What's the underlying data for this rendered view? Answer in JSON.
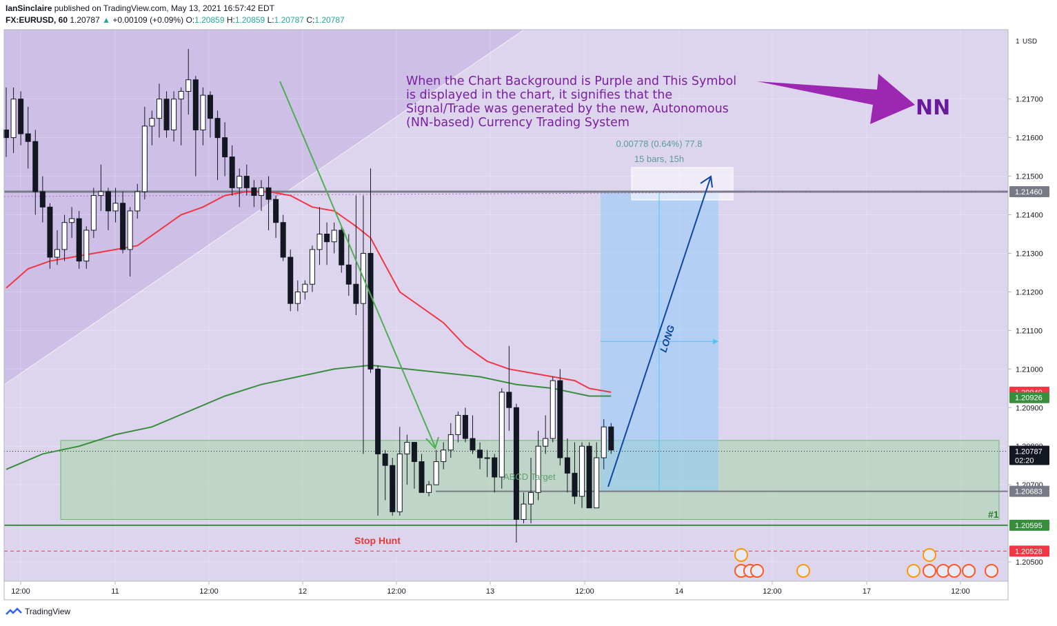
{
  "header": {
    "author": "IanSinclaire",
    "published_text": "published on TradingView.com, May 13, 2021 16:57:42 EDT",
    "symbol": "FX:EURUSD, 60",
    "last": "1.20787",
    "change_arrow": "▲",
    "change": "+0.00109 (+0.09%)",
    "o_label": "O:",
    "o": "1.20859",
    "h_label": "H:",
    "h": "1.20859",
    "l_label": "L:",
    "l": "1.20787",
    "c_label": "C:",
    "c": "1.20787"
  },
  "annotation": {
    "text_lines": [
      "When the Chart Background is Purple and This Symbol",
      "is displayed in the chart, it signifies that the",
      "Signal/Trade was generated by the new,  Autonomous",
      "(NN-based) Currency Trading System"
    ],
    "symbol": "NN"
  },
  "measure": {
    "line1": "0.00778 (0.64%) 77.8",
    "line2": "15 bars, 15h"
  },
  "labels": {
    "long": "LONG",
    "abcd": "ABCD Target",
    "stop_hunt": "Stop Hunt",
    "zone_tag": "#1",
    "currency": "USD",
    "currency_prefix": "1"
  },
  "chart_data": {
    "type": "candlestick",
    "symbol": "FX:EURUSD",
    "interval": "60",
    "ylim": [
      1.2045,
      1.2188
    ],
    "y_ticks": [
      "1.21700",
      "1.21600",
      "1.21500",
      "1.21400",
      "1.21300",
      "1.21200",
      "1.21100",
      "1.21000",
      "1.20900",
      "1.20800",
      "1.20700",
      "1.20500"
    ],
    "x_ticks": [
      "12:00",
      "11",
      "12:00",
      "12",
      "12:00",
      "13",
      "12:00",
      "14",
      "12:00",
      "17",
      "12:00"
    ],
    "price_tags": [
      {
        "value": "1.21460",
        "color": "#787b86"
      },
      {
        "value": "1.20940",
        "color": "#f23645"
      },
      {
        "value": "1.20926",
        "color": "#388e3c"
      },
      {
        "value": "1.20787",
        "color": "#131722",
        "sub": "02:20"
      },
      {
        "value": "1.20683",
        "color": "#787b86"
      },
      {
        "value": "1.20595",
        "color": "#388e3c"
      },
      {
        "value": "1.20528",
        "color": "#f23645"
      }
    ],
    "levels": {
      "resistance": 1.2146,
      "abcd_target": 1.20683,
      "support": 1.20595,
      "stop_hunt": 1.20528
    },
    "zone": {
      "high": 1.20815,
      "low": 1.2061
    },
    "trade": {
      "entry": 1.20683,
      "target": 1.2146,
      "change": "0.00778 (0.64%) 77.8",
      "bars": "15 bars, 15h"
    },
    "candles": [
      [
        1.2162,
        1.2173,
        1.2155,
        1.216
      ],
      [
        1.216,
        1.2173,
        1.2156,
        1.217
      ],
      [
        1.217,
        1.2172,
        1.2158,
        1.2161
      ],
      [
        1.2161,
        1.2168,
        1.2152,
        1.2159
      ],
      [
        1.2159,
        1.2162,
        1.214,
        1.2146
      ],
      [
        1.2146,
        1.215,
        1.2138,
        1.2142
      ],
      [
        1.2142,
        1.2143,
        1.2126,
        1.2129
      ],
      [
        1.2129,
        1.2136,
        1.2127,
        1.2131
      ],
      [
        1.2131,
        1.214,
        1.2128,
        1.2138
      ],
      [
        1.2138,
        1.2142,
        1.2134,
        1.2139
      ],
      [
        1.2139,
        1.2141,
        1.2126,
        1.2128
      ],
      [
        1.2128,
        1.2137,
        1.2126,
        1.2136
      ],
      [
        1.2136,
        1.2147,
        1.2134,
        1.2145
      ],
      [
        1.2145,
        1.2153,
        1.2141,
        1.2146
      ],
      [
        1.2146,
        1.2147,
        1.2136,
        1.2141
      ],
      [
        1.2141,
        1.2147,
        1.2138,
        1.2143
      ],
      [
        1.2143,
        1.2146,
        1.213,
        1.2131
      ],
      [
        1.2131,
        1.2142,
        1.2124,
        1.2141
      ],
      [
        1.2141,
        1.2148,
        1.2139,
        1.2146
      ],
      [
        1.2146,
        1.2168,
        1.2144,
        1.2163
      ],
      [
        1.2163,
        1.2167,
        1.2158,
        1.2165
      ],
      [
        1.2165,
        1.2174,
        1.216,
        1.217
      ],
      [
        1.217,
        1.2172,
        1.216,
        1.2162
      ],
      [
        1.2162,
        1.2172,
        1.2159,
        1.217
      ],
      [
        1.217,
        1.2173,
        1.2158,
        1.2172
      ],
      [
        1.2172,
        1.2183,
        1.2166,
        1.2175
      ],
      [
        1.2175,
        1.2176,
        1.215,
        1.2162
      ],
      [
        1.2162,
        1.2173,
        1.2158,
        1.2171
      ],
      [
        1.2171,
        1.2172,
        1.216,
        1.2165
      ],
      [
        1.2165,
        1.2167,
        1.2149,
        1.216
      ],
      [
        1.216,
        1.2164,
        1.215,
        1.2155
      ],
      [
        1.2155,
        1.2158,
        1.2145,
        1.2147
      ],
      [
        1.2147,
        1.2152,
        1.2142,
        1.215
      ],
      [
        1.215,
        1.2153,
        1.2145,
        1.2147
      ],
      [
        1.2147,
        1.2149,
        1.2142,
        1.2145
      ],
      [
        1.2145,
        1.2149,
        1.2141,
        1.2147
      ],
      [
        1.2147,
        1.215,
        1.2136,
        1.2144
      ],
      [
        1.2144,
        1.2145,
        1.2134,
        1.2138
      ],
      [
        1.2138,
        1.214,
        1.2128,
        1.2129
      ],
      [
        1.2129,
        1.2131,
        1.2115,
        1.2117
      ],
      [
        1.2117,
        1.2123,
        1.2115,
        1.212
      ],
      [
        1.212,
        1.2123,
        1.2118,
        1.2122
      ],
      [
        1.2122,
        1.2132,
        1.212,
        1.2131
      ],
      [
        1.2131,
        1.2142,
        1.2127,
        1.2135
      ],
      [
        1.2135,
        1.2138,
        1.2127,
        1.2133
      ],
      [
        1.2133,
        1.2138,
        1.213,
        1.2136
      ],
      [
        1.2136,
        1.2137,
        1.2125,
        1.2127
      ],
      [
        1.2127,
        1.2135,
        1.2119,
        1.2122
      ],
      [
        1.2122,
        1.2145,
        1.2114,
        1.2117
      ],
      [
        1.2117,
        1.2145,
        1.2078,
        1.213
      ],
      [
        1.213,
        1.2152,
        1.2099,
        1.21
      ],
      [
        1.21,
        1.2101,
        1.2062,
        1.2078
      ],
      [
        1.2078,
        1.2079,
        1.2066,
        1.2075
      ],
      [
        1.2075,
        1.2077,
        1.2062,
        1.2063
      ],
      [
        1.2063,
        1.2085,
        1.2062,
        1.2078
      ],
      [
        1.2078,
        1.2083,
        1.207,
        1.2081
      ],
      [
        1.2081,
        1.2081,
        1.2069,
        1.2076
      ],
      [
        1.2076,
        1.2078,
        1.2068,
        1.2068
      ],
      [
        1.2068,
        1.2071,
        1.2067,
        1.207
      ],
      [
        1.207,
        1.2079,
        1.207,
        1.2076
      ],
      [
        1.2076,
        1.2081,
        1.2074,
        1.2079
      ],
      [
        1.2079,
        1.2086,
        1.2077,
        1.2083
      ],
      [
        1.2083,
        1.2089,
        1.2081,
        1.2088
      ],
      [
        1.2088,
        1.209,
        1.2081,
        1.2082
      ],
      [
        1.2082,
        1.2088,
        1.2078,
        1.2079
      ],
      [
        1.2079,
        1.2081,
        1.2074,
        1.2077
      ],
      [
        1.2077,
        1.2079,
        1.2072,
        1.2077
      ],
      [
        1.2077,
        1.2078,
        1.2068,
        1.2072
      ],
      [
        1.2072,
        1.2095,
        1.2069,
        1.2094
      ],
      [
        1.2094,
        1.2106,
        1.2084,
        1.209
      ],
      [
        1.209,
        1.2091,
        1.2055,
        1.2061
      ],
      [
        1.2061,
        1.2068,
        1.206,
        1.2065
      ],
      [
        1.2065,
        1.2077,
        1.206,
        1.2068
      ],
      [
        1.2068,
        1.2084,
        1.2066,
        1.208
      ],
      [
        1.208,
        1.2088,
        1.2078,
        1.2082
      ],
      [
        1.2082,
        1.2098,
        1.2081,
        1.2097
      ],
      [
        1.2097,
        1.21,
        1.2075,
        1.2077
      ],
      [
        1.2077,
        1.2082,
        1.2068,
        1.2073
      ],
      [
        1.2073,
        1.2081,
        1.2065,
        1.2067
      ],
      [
        1.2067,
        1.2081,
        1.2064,
        1.208
      ],
      [
        1.208,
        1.2081,
        1.2064,
        1.2064
      ],
      [
        1.2064,
        1.2081,
        1.2064,
        1.2077
      ],
      [
        1.2077,
        1.2087,
        1.2074,
        1.2085
      ],
      [
        1.2085,
        1.2086,
        1.2078,
        1.2079
      ]
    ],
    "sma_red": [
      [
        0,
        1.2121
      ],
      [
        3,
        1.2126
      ],
      [
        6,
        1.2128
      ],
      [
        9,
        1.2129
      ],
      [
        12,
        1.213
      ],
      [
        15,
        1.2131
      ],
      [
        18,
        1.2132
      ],
      [
        21,
        1.2136
      ],
      [
        24,
        1.214
      ],
      [
        27,
        1.2142
      ],
      [
        30,
        1.2145
      ],
      [
        33,
        1.2146
      ],
      [
        36,
        1.2146
      ],
      [
        39,
        1.2145
      ],
      [
        42,
        1.2142
      ],
      [
        45,
        1.2141
      ],
      [
        48,
        1.2137
      ],
      [
        50,
        1.2134
      ],
      [
        52,
        1.2127
      ],
      [
        54,
        1.212
      ],
      [
        57,
        1.2116
      ],
      [
        60,
        1.2112
      ],
      [
        63,
        1.2106
      ],
      [
        66,
        1.2102
      ],
      [
        69,
        1.21
      ],
      [
        72,
        1.2099
      ],
      [
        75,
        1.2098
      ],
      [
        78,
        1.2097
      ],
      [
        80,
        1.2095
      ],
      [
        83,
        1.2094
      ]
    ],
    "sma_green": [
      [
        0,
        1.2074
      ],
      [
        5,
        1.2078
      ],
      [
        10,
        1.208
      ],
      [
        15,
        1.2083
      ],
      [
        20,
        1.2085
      ],
      [
        25,
        1.2089
      ],
      [
        30,
        1.2093
      ],
      [
        35,
        1.2096
      ],
      [
        40,
        1.2098
      ],
      [
        45,
        1.21
      ],
      [
        50,
        1.2101
      ],
      [
        55,
        1.21
      ],
      [
        60,
        1.2099
      ],
      [
        65,
        1.2098
      ],
      [
        70,
        1.2096
      ],
      [
        75,
        1.2095
      ],
      [
        80,
        1.2093
      ],
      [
        83,
        1.2093
      ]
    ]
  }
}
